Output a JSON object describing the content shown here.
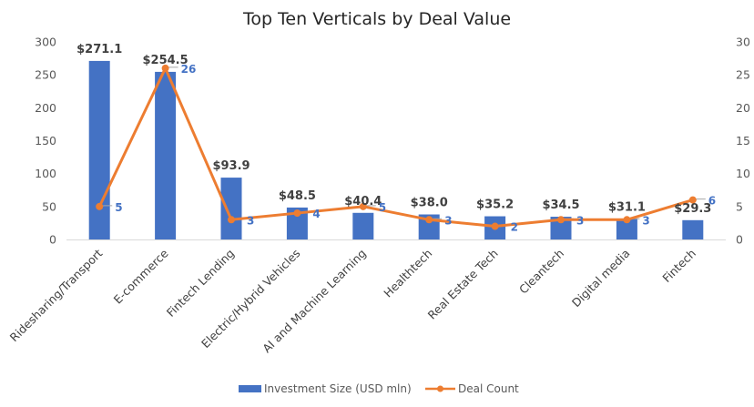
{
  "chart_data": {
    "type": "bar+line",
    "title": "Top Ten Verticals by Deal Value",
    "categories": [
      "Ridesharing/Transport",
      "E-commerce",
      "Fintech Lending",
      "Electric/Hybrid Vehicles",
      "AI and Machine Learning",
      "Healthtech",
      "Real Estate Tech",
      "Cleantech",
      "Digital media",
      "Fintech"
    ],
    "series": [
      {
        "name": "Investment Size (USD mln)",
        "type": "bar",
        "axis": "left",
        "color": "#4472C4",
        "values": [
          271.1,
          254.5,
          93.9,
          48.5,
          40.4,
          38.0,
          35.2,
          34.5,
          31.1,
          29.3
        ],
        "labels": [
          "$271.1",
          "$254.5",
          "$93.9",
          "$48.5",
          "$40.4",
          "$38.0",
          "$35.2",
          "$34.5",
          "$31.1",
          "$29.3"
        ]
      },
      {
        "name": "Deal Count",
        "type": "line",
        "axis": "right",
        "color": "#ED7D31",
        "values": [
          5,
          26,
          3,
          4,
          5,
          3,
          2,
          3,
          3,
          6
        ],
        "labels": [
          "5",
          "26",
          "3",
          "4",
          "5",
          "3",
          "2",
          "3",
          "3",
          "6"
        ]
      }
    ],
    "y_left": {
      "min": 0,
      "max": 300,
      "ticks": [
        "0",
        "50",
        "100",
        "150",
        "200",
        "250",
        "300"
      ]
    },
    "y_right": {
      "min": 0,
      "max": 30,
      "ticks": [
        "0",
        "5",
        "10",
        "15",
        "20",
        "25",
        "30"
      ]
    },
    "xlabel": "",
    "ylabel": "",
    "grid": false,
    "legend": {
      "position": "bottom",
      "entries": [
        "Investment Size (USD mln)",
        "Deal Count"
      ]
    }
  }
}
